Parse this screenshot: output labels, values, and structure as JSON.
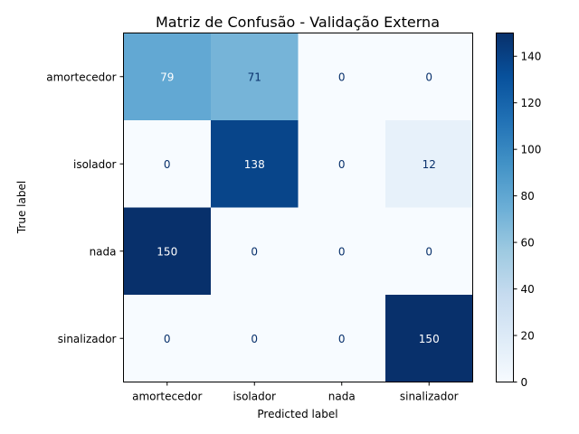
{
  "chart_data": {
    "type": "heatmap",
    "title": "Matriz de Confusão - Validação Externa",
    "xlabel": "Predicted label",
    "ylabel": "True label",
    "x_categories": [
      "amortecedor",
      "isolador",
      "nada",
      "sinalizador"
    ],
    "y_categories": [
      "amortecedor",
      "isolador",
      "nada",
      "sinalizador"
    ],
    "matrix": [
      [
        79,
        71,
        0,
        0
      ],
      [
        0,
        138,
        0,
        12
      ],
      [
        150,
        0,
        0,
        0
      ],
      [
        0,
        0,
        0,
        150
      ]
    ],
    "colormap": "Blues",
    "colorbar": {
      "range": [
        0,
        150
      ],
      "ticks": [
        0,
        20,
        40,
        60,
        80,
        100,
        120,
        140
      ]
    },
    "grid": false
  }
}
